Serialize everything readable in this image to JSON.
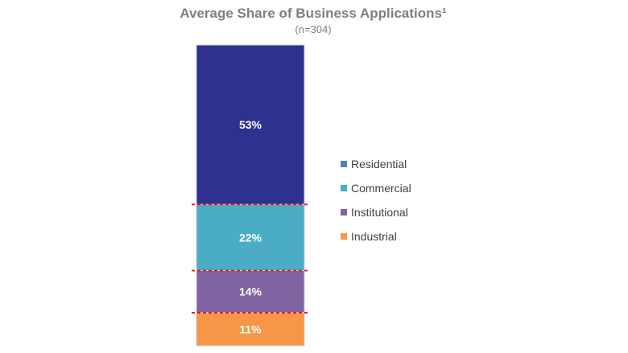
{
  "chart_data": {
    "type": "bar",
    "stacked": true,
    "title": "Average Share of Business Applications¹",
    "subtitle": "(n=304)",
    "categories": [
      ""
    ],
    "series": [
      {
        "name": "Residential",
        "values": [
          53
        ],
        "label": "53%",
        "color": "#2e3190"
      },
      {
        "name": "Commercial",
        "values": [
          22
        ],
        "label": "22%",
        "color": "#4bacc6"
      },
      {
        "name": "Institutional",
        "values": [
          14
        ],
        "label": "14%",
        "color": "#8064a2"
      },
      {
        "name": "Industrial",
        "values": [
          11
        ],
        "label": "11%",
        "color": "#f79646"
      }
    ],
    "ylim": [
      0,
      100
    ],
    "unit": "%",
    "grid": false,
    "legend_position": "right",
    "legend": [
      {
        "name": "Residential",
        "color": "#4f81bd"
      },
      {
        "name": "Commercial",
        "color": "#4bacc6"
      },
      {
        "name": "Institutional",
        "color": "#8064a2"
      },
      {
        "name": "Industrial",
        "color": "#f79646"
      }
    ],
    "separator_color": "#e31a1c",
    "border_color": "#d0d0d0"
  }
}
